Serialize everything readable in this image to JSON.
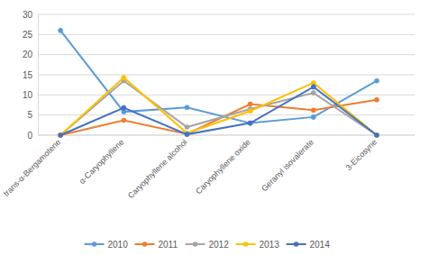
{
  "chart_data": {
    "type": "line",
    "categories": [
      "trans-α-Bergamotene",
      "α-Caryophyllene",
      "Caryophyllene alcohol",
      "Caryophyllene oxide",
      "Geranyl isovalerate",
      "3-Eicosyne"
    ],
    "series": [
      {
        "name": "2010",
        "color": "#5B9BD5",
        "marker": "circle",
        "values": [
          26,
          5.8,
          6.9,
          3,
          4.5,
          13.5
        ]
      },
      {
        "name": "2011",
        "color": "#ED7D31",
        "marker": "circle",
        "values": [
          0,
          3.7,
          0.3,
          7.7,
          6.2,
          8.8
        ]
      },
      {
        "name": "2012",
        "color": "#A5A5A5",
        "marker": "circle",
        "values": [
          0,
          13.5,
          2,
          6.5,
          10.5,
          0
        ]
      },
      {
        "name": "2013",
        "color": "#FFC000",
        "marker": "circle",
        "values": [
          0,
          14.3,
          0.5,
          6,
          13,
          0
        ]
      },
      {
        "name": "2014",
        "color": "#4472C4",
        "marker": "circle",
        "values": [
          0,
          6.8,
          0.2,
          3,
          12,
          0
        ]
      }
    ],
    "ylim": [
      0,
      30
    ],
    "yticks": [
      0,
      5,
      10,
      15,
      20,
      25,
      30
    ],
    "grid": true,
    "legend": "bottom"
  }
}
